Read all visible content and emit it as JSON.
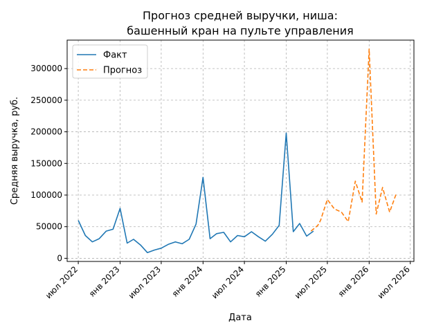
{
  "chart_data": {
    "type": "line",
    "title_lines": [
      "Прогноз средней выручки, ниша:",
      "башенный кран на пульте управления"
    ],
    "xlabel": "Дата",
    "ylabel": "Средняя выручка, руб.",
    "ylim": [
      -5000,
      345000
    ],
    "xlim": [
      "2022-05-13",
      "2026-07-17"
    ],
    "yticks": [
      0,
      50000,
      100000,
      150000,
      200000,
      250000,
      300000
    ],
    "ytick_labels": [
      "0",
      "50000",
      "100000",
      "150000",
      "200000",
      "250000",
      "300000"
    ],
    "xticks": [
      "2022-07-01",
      "2023-01-01",
      "2023-07-01",
      "2024-01-01",
      "2024-07-01",
      "2025-01-01",
      "2025-07-01",
      "2026-01-01",
      "2026-07-01"
    ],
    "xtick_labels": [
      "июл 2022",
      "янв 2023",
      "июл 2023",
      "янв 2024",
      "июл 2024",
      "янв 2025",
      "июл 2025",
      "янв 2026",
      "июл 2026"
    ],
    "grid": true,
    "legend_position": "top-left",
    "series": [
      {
        "name": "Факт",
        "color": "#1f77b4",
        "style": "solid",
        "points": [
          [
            "2022-07-01",
            60000
          ],
          [
            "2022-08-01",
            36000
          ],
          [
            "2022-09-01",
            26000
          ],
          [
            "2022-10-01",
            31000
          ],
          [
            "2022-11-01",
            43000
          ],
          [
            "2022-12-01",
            46000
          ],
          [
            "2023-01-01",
            79000
          ],
          [
            "2023-02-01",
            24000
          ],
          [
            "2023-03-01",
            30000
          ],
          [
            "2023-04-01",
            21000
          ],
          [
            "2023-05-01",
            9000
          ],
          [
            "2023-06-01",
            13000
          ],
          [
            "2023-07-01",
            16000
          ],
          [
            "2023-08-01",
            22000
          ],
          [
            "2023-09-01",
            26000
          ],
          [
            "2023-10-01",
            23000
          ],
          [
            "2023-11-01",
            30000
          ],
          [
            "2023-12-01",
            54000
          ],
          [
            "2024-01-01",
            128000
          ],
          [
            "2024-02-01",
            31000
          ],
          [
            "2024-03-01",
            39000
          ],
          [
            "2024-04-01",
            41000
          ],
          [
            "2024-05-01",
            26000
          ],
          [
            "2024-06-01",
            36000
          ],
          [
            "2024-07-01",
            34000
          ],
          [
            "2024-08-01",
            42000
          ],
          [
            "2024-09-01",
            34000
          ],
          [
            "2024-10-01",
            27000
          ],
          [
            "2024-11-01",
            38000
          ],
          [
            "2024-12-01",
            52000
          ],
          [
            "2025-01-01",
            198000
          ],
          [
            "2025-02-01",
            42000
          ],
          [
            "2025-03-01",
            55000
          ],
          [
            "2025-04-01",
            35000
          ],
          [
            "2025-05-01",
            43000
          ]
        ]
      },
      {
        "name": "Прогноз",
        "color": "#ff7f0e",
        "style": "dashed",
        "points": [
          [
            "2025-04-20",
            43000
          ],
          [
            "2025-05-20",
            52000
          ],
          [
            "2025-06-01",
            60000
          ],
          [
            "2025-07-01",
            93000
          ],
          [
            "2025-08-01",
            78000
          ],
          [
            "2025-09-01",
            73000
          ],
          [
            "2025-10-01",
            58000
          ],
          [
            "2025-11-01",
            122000
          ],
          [
            "2025-12-01",
            89000
          ],
          [
            "2026-01-01",
            331000
          ],
          [
            "2026-02-01",
            70000
          ],
          [
            "2026-03-01",
            112000
          ],
          [
            "2026-04-01",
            73000
          ],
          [
            "2026-05-01",
            103000
          ]
        ]
      }
    ]
  }
}
